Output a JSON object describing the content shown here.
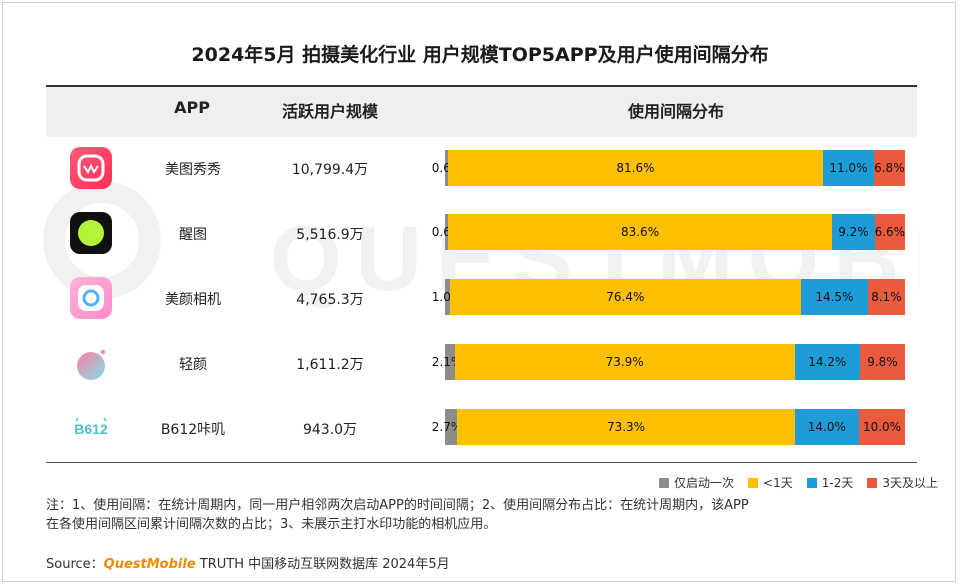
{
  "title": "2024年5月 拍摄美化行业 用户规模TOP5APP及用户使用间隔分布",
  "headers": {
    "app": "APP",
    "users": "活跃用户规模",
    "dist": "使用间隔分布"
  },
  "watermark": "QUESTMOBILE",
  "colors": {
    "once": "#8c8c8c",
    "lt1": "#fcc000",
    "d12": "#1e9cd7",
    "d3plus": "#ea5a3d",
    "header_bg": "#efefef",
    "brand": "#f08a00"
  },
  "legend": [
    "仅启动一次",
    "<1天",
    "1-2天",
    "3天及以上"
  ],
  "note": {
    "line1": "注：1、使用间隔：在统计周期内，同一用户相邻两次启动APP的时间间隔；2、使用间隔分布占比：在统计周期内，该APP",
    "line2": "在各使用间隔区间累计间隔次数的占比；3、未展示主打水印功能的相机应用。"
  },
  "source": {
    "prefix": "Source：",
    "brand": "QuestMobile",
    "suffix": " TRUTH 中国移动互联网数据库 2024年5月"
  },
  "apps": [
    {
      "name": "美图秀秀",
      "users": "10,799.4万",
      "icon": "meitu-xiuxiu-icon"
    },
    {
      "name": "醒图",
      "users": "5,516.9万",
      "icon": "xingtu-icon"
    },
    {
      "name": "美颜相机",
      "users": "4,765.3万",
      "icon": "beauty-camera-icon"
    },
    {
      "name": "轻颜",
      "users": "1,611.2万",
      "icon": "qingyan-icon"
    },
    {
      "name": "B612咔叽",
      "users": "943.0万",
      "icon": "b612-icon"
    }
  ],
  "chart_data": {
    "type": "bar",
    "orientation": "horizontal",
    "stacked": true,
    "unit": "%",
    "categories": [
      "美图秀秀",
      "醒图",
      "美颜相机",
      "轻颜",
      "B612咔叽"
    ],
    "series": [
      {
        "name": "仅启动一次",
        "values": [
          0.6,
          0.6,
          1.0,
          2.1,
          2.7
        ]
      },
      {
        "name": "<1天",
        "values": [
          81.6,
          83.6,
          76.4,
          73.9,
          73.3
        ]
      },
      {
        "name": "1-2天",
        "values": [
          11.0,
          9.2,
          14.5,
          14.2,
          14.0
        ]
      },
      {
        "name": "3天及以上",
        "values": [
          6.8,
          6.6,
          8.1,
          9.8,
          10.0
        ]
      }
    ],
    "labels": [
      [
        "0.6%",
        "81.6%",
        "11.0%",
        "6.8%"
      ],
      [
        "0.6%",
        "83.6%",
        "9.2%",
        "6.6%"
      ],
      [
        "1.0%",
        "76.4%",
        "14.5%",
        "8.1%"
      ],
      [
        "2.1%",
        "73.9%",
        "14.2%",
        "9.8%"
      ],
      [
        "2.7%",
        "73.3%",
        "14.0%",
        "10.0%"
      ]
    ],
    "legend_position": "bottom-right"
  }
}
